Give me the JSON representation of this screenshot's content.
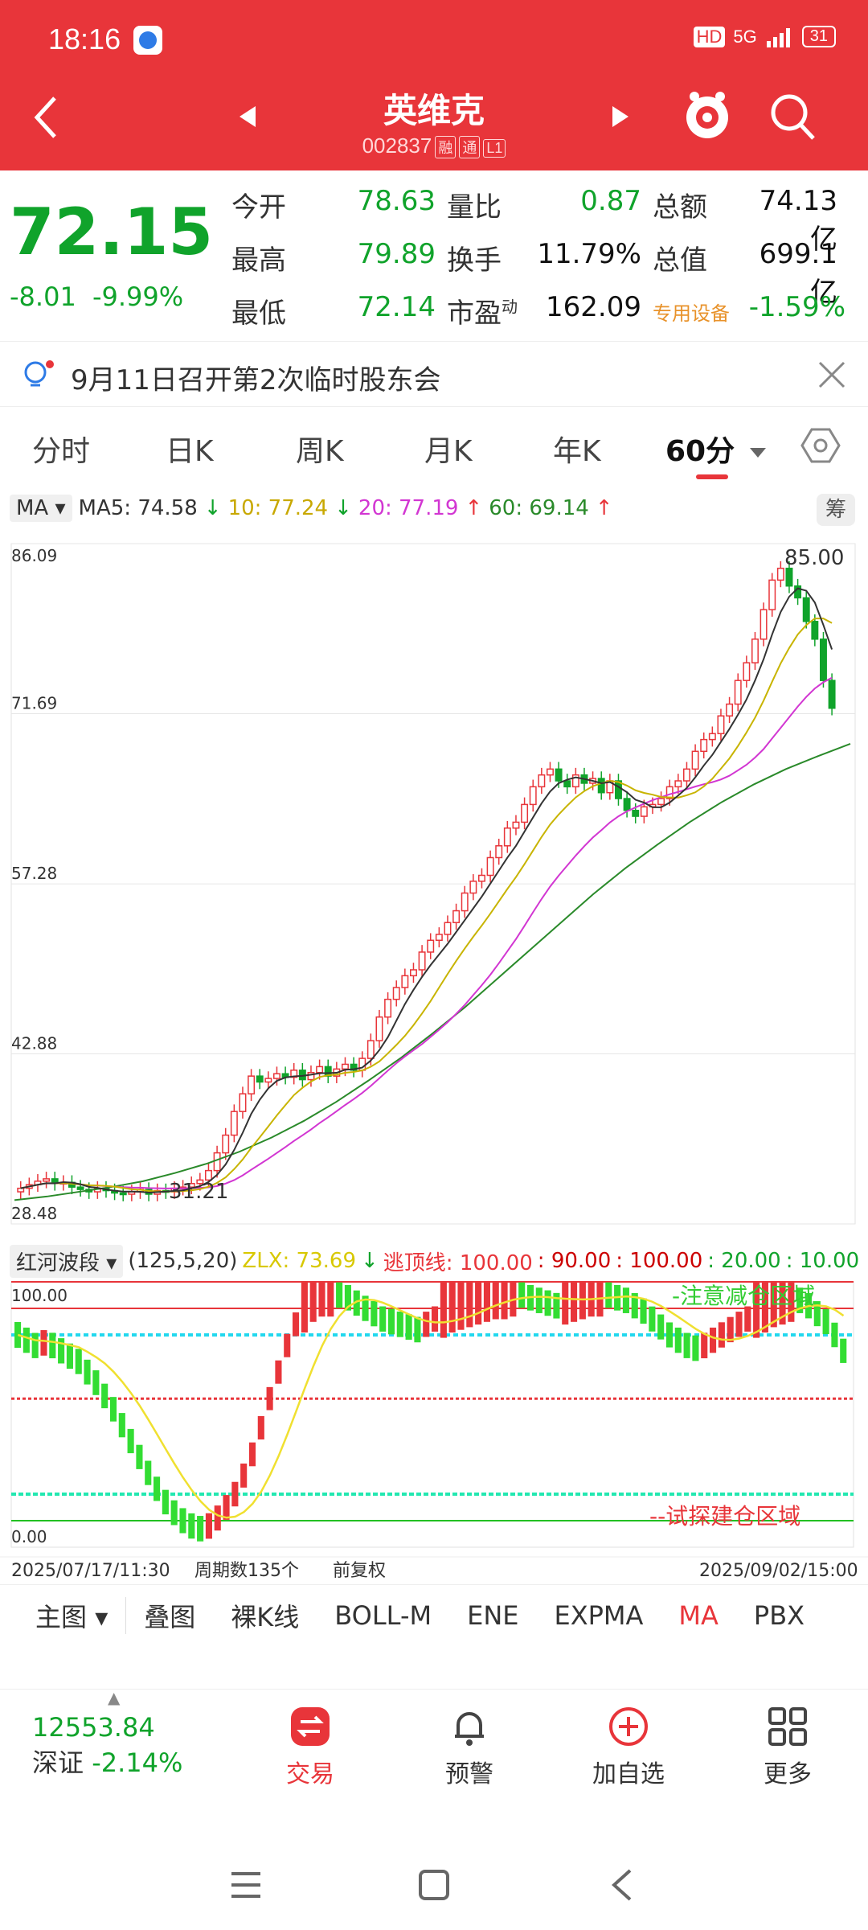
{
  "status_bar": {
    "time": "18:16",
    "network": "5G",
    "hd": "HD",
    "battery": "31"
  },
  "header": {
    "title": "英维克",
    "code": "002837",
    "tags": [
      "融",
      "通",
      "L1"
    ]
  },
  "quote": {
    "price": "72.15",
    "change": "-8.01",
    "change_pct": "-9.99%",
    "rows": [
      {
        "l1": "今开",
        "v1": "78.63",
        "l2": "量比",
        "v2": "0.87",
        "l3": "总额",
        "v3": "74.13亿"
      },
      {
        "l1": "最高",
        "v1": "79.89",
        "l2": "换手",
        "v2": "11.79%",
        "l3": "总值",
        "v3": "699.1亿"
      },
      {
        "l1": "最低",
        "v1": "72.14",
        "l2": "市盈",
        "v2": "162.09",
        "l3": "专用设备",
        "v3": "-1.59%"
      }
    ],
    "pe_sup": "动"
  },
  "notice": {
    "text": "9月11日召开第2次临时股东会"
  },
  "tabs": [
    "分时",
    "日K",
    "周K",
    "月K",
    "年K",
    "60分"
  ],
  "ma_legend": {
    "selector": "MA",
    "ma5": "MA5: 74.58",
    "ma10": "10: 77.24",
    "ma20": "20: 77.19",
    "ma60": "60: 69.14",
    "chip_button": "筹",
    "colors": {
      "ma5": "#333333",
      "ma10": "#c8b400",
      "ma20": "#d236d2",
      "ma60": "#2a8a2a"
    }
  },
  "chart_data": [
    {
      "type": "candlestick",
      "title": "",
      "y_ticks": [
        "86.09",
        "71.69",
        "57.28",
        "42.88",
        "28.48"
      ],
      "ylim": [
        28.48,
        86.09
      ],
      "max_label": "85.00",
      "min_label": "31.21",
      "closes": [
        31.5,
        31.8,
        32.1,
        32.3,
        31.9,
        32.0,
        31.6,
        31.4,
        31.2,
        31.5,
        31.3,
        31.1,
        31.0,
        31.2,
        31.4,
        31.0,
        31.3,
        31.2,
        31.5,
        31.6,
        31.9,
        32.2,
        33.0,
        34.5,
        36.0,
        38.0,
        39.5,
        41.0,
        40.5,
        40.8,
        41.2,
        40.9,
        41.5,
        40.7,
        41.3,
        41.8,
        41.0,
        41.6,
        42.0,
        41.5,
        42.5,
        44.0,
        46.0,
        47.5,
        48.5,
        49.5,
        50.0,
        51.5,
        52.5,
        53.0,
        54.0,
        55.0,
        56.5,
        57.5,
        58.0,
        59.5,
        60.5,
        62.0,
        62.5,
        64.0,
        65.5,
        66.5,
        67.0,
        66.0,
        65.5,
        66.5,
        65.8,
        66.2,
        65.0,
        66.0,
        64.5,
        63.5,
        63.0,
        63.8,
        64.0,
        64.5,
        65.5,
        66.0,
        67.0,
        68.5,
        69.5,
        70.0,
        71.5,
        72.5,
        74.5,
        76.0,
        78.0,
        80.5,
        83.0,
        84.0,
        82.5,
        81.5,
        79.5,
        78.0,
        74.5,
        72.15
      ],
      "ma5": [],
      "ma60_line": [
        30.5,
        30.8,
        31.2,
        31.6,
        32.1,
        32.8,
        33.6,
        34.6,
        35.8,
        37.2,
        38.8,
        40.6,
        42.5,
        44.6,
        46.8,
        49.2,
        51.6,
        54.0,
        56.4,
        58.6,
        60.6,
        62.5,
        64.2,
        65.7,
        67.0,
        68.1,
        69.14
      ]
    },
    {
      "type": "indicator",
      "name": "红河波段",
      "params": "(125,5,20)",
      "zlx": "ZLX: 73.69",
      "top_line": "逃顶线: 100.00",
      "levels": [
        ": 90.00",
        ": 100.00",
        ": 20.00",
        ": 10.00"
      ],
      "y_ticks": [
        "100.00",
        "0.00"
      ],
      "zone_top": "-注意减仓区域",
      "zone_bottom": "--试探建仓区域",
      "x_start": "2025/07/17/11:30",
      "period_count": "周期数135个",
      "adjust": "前复权",
      "x_end": "2025/09/02/15:00",
      "series": [
        80,
        78,
        76,
        77,
        76,
        74,
        72,
        70,
        66,
        62,
        57,
        52,
        46,
        40,
        34,
        28,
        22,
        17,
        13,
        10,
        8,
        7,
        8,
        11,
        15,
        20,
        27,
        35,
        45,
        56,
        66,
        76,
        84,
        90,
        94,
        96,
        96,
        95,
        94,
        92,
        90,
        88,
        86,
        85,
        84,
        83,
        82,
        84,
        86,
        88,
        90,
        91,
        92,
        93,
        94,
        95,
        95,
        96,
        95,
        94,
        93,
        92,
        91,
        93,
        94,
        95,
        96,
        96,
        95,
        94,
        93,
        91,
        89,
        86,
        83,
        80,
        78,
        76,
        75,
        76,
        78,
        80,
        82,
        84,
        86,
        88,
        90,
        92,
        93,
        94,
        93,
        91,
        88,
        85,
        80,
        74
      ]
    }
  ],
  "indicator_bar": [
    "主图",
    "叠图",
    "裸K线",
    "BOLL-M",
    "ENE",
    "EXPMA",
    "MA",
    "PBX"
  ],
  "bottom_nav": {
    "index_value": "12553.84",
    "index_name": "深证",
    "index_change": "-2.14%",
    "items": [
      "交易",
      "预警",
      "加自选",
      "更多"
    ]
  }
}
